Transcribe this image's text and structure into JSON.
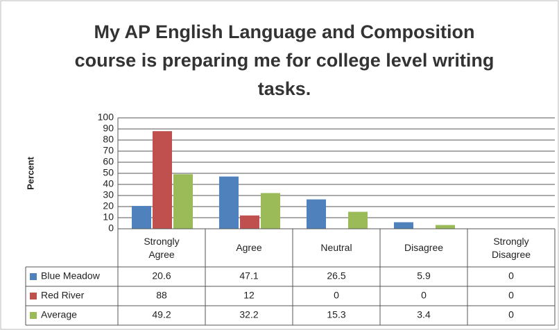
{
  "chart_data": {
    "type": "bar",
    "title": "My AP English Language and Composition course is preparing me for college level writing tasks.",
    "y_label": "Percent",
    "categories": [
      "Strongly Agree",
      "Agree",
      "Neutral",
      "Disagree",
      "Strongly Disagree"
    ],
    "series": [
      {
        "name": "Blue Meadow",
        "color": "#4f81bd",
        "values": [
          20.6,
          47.1,
          26.5,
          5.9,
          0
        ]
      },
      {
        "name": "Red River",
        "color": "#c0504d",
        "values": [
          88,
          12,
          0,
          0,
          0
        ]
      },
      {
        "name": "Average",
        "color": "#9bbb59",
        "values": [
          49.2,
          32.2,
          15.3,
          3.4,
          0
        ]
      }
    ],
    "ylim": [
      0,
      100
    ],
    "yticks": [
      0,
      10,
      20,
      30,
      40,
      50,
      60,
      70,
      80,
      90,
      100
    ],
    "grid": true
  }
}
